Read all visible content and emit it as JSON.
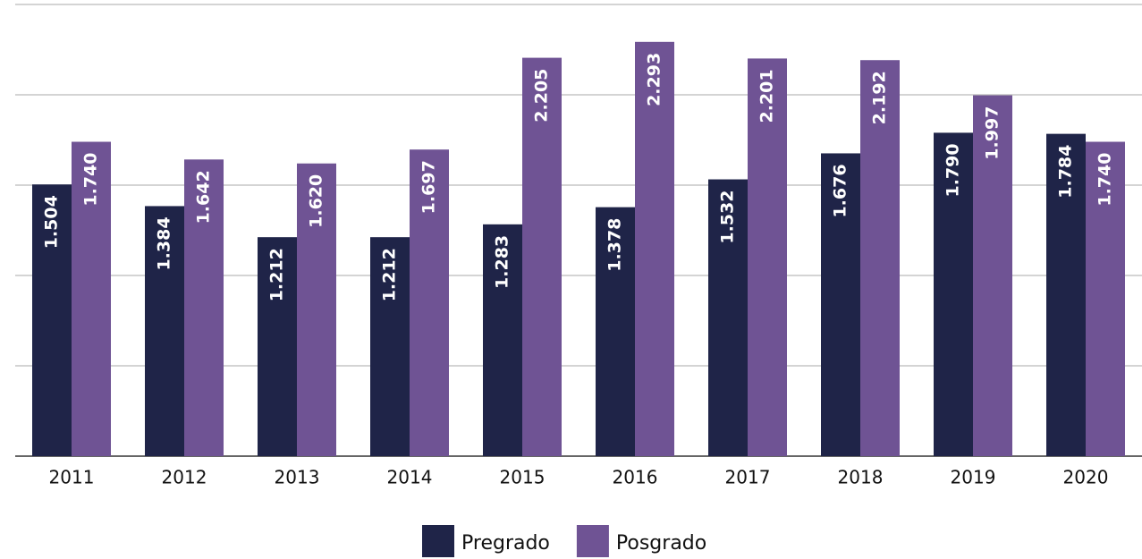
{
  "chart_data": {
    "type": "bar",
    "categories": [
      "2011",
      "2012",
      "2013",
      "2014",
      "2015",
      "2016",
      "2017",
      "2018",
      "2019",
      "2020"
    ],
    "series": [
      {
        "name": "Pregrado",
        "color": "#1f2448",
        "values": [
          1504,
          1384,
          1212,
          1212,
          1283,
          1378,
          1532,
          1676,
          1790,
          1784
        ],
        "value_labels": [
          "1.504",
          "1.384",
          "1.212",
          "1.212",
          "1.283",
          "1.378",
          "1.532",
          "1.676",
          "1.790",
          "1.784"
        ]
      },
      {
        "name": "Posgrado",
        "color": "#6f5394",
        "values": [
          1740,
          1642,
          1620,
          1697,
          2205,
          2293,
          2201,
          2192,
          1997,
          1740
        ],
        "value_labels": [
          "1.740",
          "1.642",
          "1.620",
          "1.697",
          "2.205",
          "2.293",
          "2.201",
          "2.192",
          "1.997",
          "1.740"
        ]
      }
    ],
    "ylim": [
      0,
      2500
    ],
    "yticks": [
      0,
      500,
      1000,
      1500,
      2000,
      2500
    ],
    "grid": true,
    "legend": "bottom"
  }
}
